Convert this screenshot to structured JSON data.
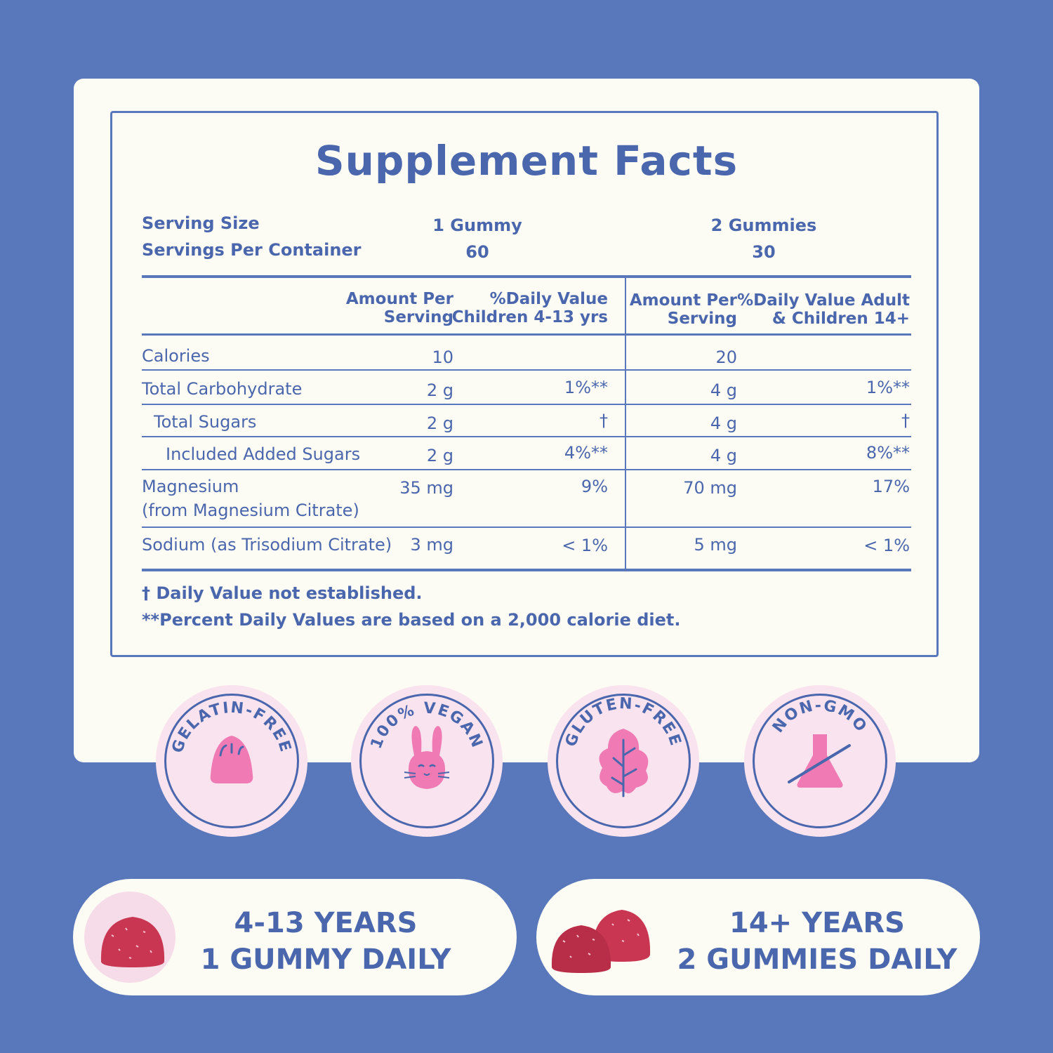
{
  "title": "Supplement Facts",
  "serving": {
    "size_label": "Serving Size",
    "per_container_label": "Servings Per Container",
    "child_size": "1 Gummy",
    "child_per_container": "60",
    "adult_size": "2 Gummies",
    "adult_per_container": "30"
  },
  "headers": {
    "child_amount": [
      "Amount Per",
      "Serving"
    ],
    "child_dv": [
      "%Daily Value",
      "Children 4-13 yrs"
    ],
    "adult_amount": [
      "Amount Per",
      "Serving"
    ],
    "adult_dv": [
      "%Daily Value Adult",
      "& Children 14+"
    ]
  },
  "rows": [
    {
      "name": "Calories",
      "sub": "",
      "child_amount": "10",
      "child_dv": "",
      "adult_amount": "20",
      "adult_dv": ""
    },
    {
      "name": "Total Carbohydrate",
      "sub": "",
      "child_amount": "2 g",
      "child_dv": "1%**",
      "adult_amount": "4 g",
      "adult_dv": "1%**"
    },
    {
      "name": "Total Sugars",
      "sub": "",
      "child_amount": "2 g",
      "child_dv": "†",
      "adult_amount": "4 g",
      "adult_dv": "†"
    },
    {
      "name": "Included Added Sugars",
      "sub": "",
      "child_amount": "2 g",
      "child_dv": "4%**",
      "adult_amount": "4 g",
      "adult_dv": "8%**"
    },
    {
      "name": "Magnesium",
      "sub": "(from Magnesium Citrate)",
      "child_amount": "35 mg",
      "child_dv": "9%",
      "adult_amount": "70 mg",
      "adult_dv": "17%"
    },
    {
      "name": "Sodium (as Trisodium Citrate)",
      "sub": "",
      "child_amount": "3 mg",
      "child_dv": "< 1%",
      "adult_amount": "5 mg",
      "adult_dv": "< 1%"
    }
  ],
  "notes": {
    "dagger": "† Daily Value not established.",
    "percent": "**Percent Daily Values are based on a 2,000 calorie diet."
  },
  "badges": [
    {
      "label": "GELATIN-FREE",
      "icon": "jelly-icon"
    },
    {
      "label": "100% VEGAN",
      "icon": "bunny-icon"
    },
    {
      "label": "GLUTEN-FREE",
      "icon": "leaf-icon"
    },
    {
      "label": "NON-GMO",
      "icon": "flask-crossed-icon"
    }
  ],
  "dosage": [
    {
      "line1": "4-13 YEARS",
      "line2": "1 GUMMY DAILY",
      "icon": "gummy-icon"
    },
    {
      "line1": "14+ YEARS",
      "line2": "2 GUMMIES DAILY",
      "icon": "two-gummies-icon"
    }
  ],
  "colors": {
    "background": "#5978bc",
    "card": "#fdfcf4",
    "text": "#4a67ad",
    "badge_bg": "#f9e3ef",
    "pink": "#f07ab4",
    "gummy": "#c93652"
  }
}
